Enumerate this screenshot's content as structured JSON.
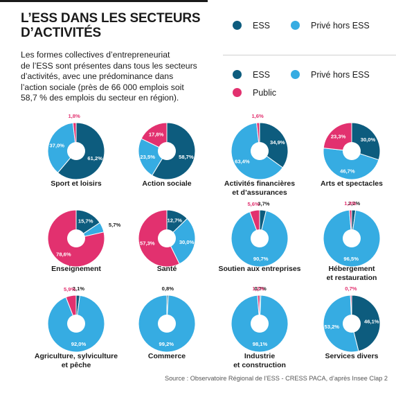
{
  "header": {
    "title_lines": [
      "L’ESS DANS LES SECTEURS",
      "D’ACTIVITÉS"
    ],
    "intro_lines": [
      "Les formes collectives d’entrepreneuriat",
      "de l’ESS sont présentes dans tous les secteurs",
      "d’activités, avec une prédominance dans",
      "l’action sociale (près de 66 000 emplois soit",
      "58,7 % des emplois du secteur en région)."
    ]
  },
  "legend_top": {
    "items": [
      {
        "label": "ESS",
        "color": "#0d5c7e"
      },
      {
        "label": "Privé hors ESS",
        "color": "#36ace2"
      }
    ]
  },
  "legend_main": {
    "items": [
      {
        "label": "ESS",
        "color": "#0d5c7e"
      },
      {
        "label": "Privé hors ESS",
        "color": "#36ace2"
      },
      {
        "label": "Public",
        "color": "#e2316f"
      }
    ]
  },
  "colors": {
    "ess": "#0d5c7e",
    "prive": "#36ace2",
    "public": "#e2316f",
    "label_dark": "#1a1a1a"
  },
  "source": "Source : Observatoire Régional de l’ESS - CRESS PACA, d’après Insee Clap 2",
  "chart_data": {
    "type": "pie",
    "variant": "donut",
    "segment_order": [
      "ESS",
      "Privé hors ESS",
      "Public"
    ],
    "charts": [
      {
        "name_lines": [
          "Sport et loisirs"
        ],
        "values": {
          "ESS": 61.2,
          "Privé hors ESS": 37.0,
          "Public": 1.8
        },
        "labels": {
          "ESS": "61,2%",
          "Privé hors ESS": "37,0%",
          "Public": "1,8%"
        }
      },
      {
        "name_lines": [
          "Action sociale"
        ],
        "values": {
          "ESS": 58.7,
          "Privé hors ESS": 23.5,
          "Public": 17.8
        },
        "labels": {
          "ESS": "58,7%",
          "Privé hors ESS": "23,5%",
          "Public": "17,8%"
        }
      },
      {
        "name_lines": [
          "Activités financières",
          "et d’assurances"
        ],
        "values": {
          "ESS": 34.9,
          "Privé hors ESS": 63.4,
          "Public": 1.6
        },
        "labels": {
          "ESS": "34,9%",
          "Privé hors ESS": "63,4%",
          "Public": "1,6%"
        }
      },
      {
        "name_lines": [
          "Arts et spectacles"
        ],
        "values": {
          "ESS": 30.0,
          "Privé hors ESS": 46.7,
          "Public": 23.3
        },
        "labels": {
          "ESS": "30,0%",
          "Privé hors ESS": "46,7%",
          "Public": "23,3%"
        }
      },
      {
        "name_lines": [
          "Enseignement"
        ],
        "values": {
          "ESS": 15.7,
          "Privé hors ESS": 5.7,
          "Public": 78.6
        },
        "labels": {
          "ESS": "15,7%",
          "Privé hors ESS": "5,7%",
          "Public": "78,6%"
        }
      },
      {
        "name_lines": [
          "Santé"
        ],
        "values": {
          "ESS": 12.7,
          "Privé hors ESS": 30.0,
          "Public": 57.3
        },
        "labels": {
          "ESS": "12,7%",
          "Privé hors ESS": "30,0%",
          "Public": "57,3%"
        }
      },
      {
        "name_lines": [
          "Soutien aux entreprises"
        ],
        "values": {
          "ESS": 3.7,
          "Privé hors ESS": 90.7,
          "Public": 5.6
        },
        "labels": {
          "ESS": "3,7%",
          "Privé hors ESS": "90,7%",
          "Public": "5,6%"
        }
      },
      {
        "name_lines": [
          "Hébergement",
          "et restauration"
        ],
        "values": {
          "ESS": 2.2,
          "Privé hors ESS": 96.5,
          "Public": 1.3
        },
        "labels": {
          "ESS": "2,2%",
          "Privé hors ESS": "96,5%",
          "Public": "1,3%"
        }
      },
      {
        "name_lines": [
          "Agriculture, sylviculture",
          "et pêche"
        ],
        "values": {
          "ESS": 2.1,
          "Privé hors ESS": 92.0,
          "Public": 5.9
        },
        "labels": {
          "ESS": "2,1%",
          "Privé hors ESS": "92,0%",
          "Public": "5,9%"
        }
      },
      {
        "name_lines": [
          "Commerce"
        ],
        "values": {
          "ESS": 0.8,
          "Privé hors ESS": 99.2,
          "Public": 0
        },
        "labels": {
          "ESS": "0,8%",
          "Privé hors ESS": "99,2%"
        }
      },
      {
        "name_lines": [
          "Industrie",
          "et construction"
        ],
        "values": {
          "ESS": 0.7,
          "Privé hors ESS": 98.1,
          "Public": 1.2
        },
        "labels": {
          "ESS": "0,7%",
          "Privé hors ESS": "98,1%",
          "Public": "1,2%"
        }
      },
      {
        "name_lines": [
          "Services divers"
        ],
        "values": {
          "ESS": 46.1,
          "Privé hors ESS": 53.2,
          "Public": 0.7
        },
        "labels": {
          "ESS": "46,1%",
          "Privé hors ESS": "53,2%",
          "Public": "0,7%"
        }
      }
    ]
  }
}
